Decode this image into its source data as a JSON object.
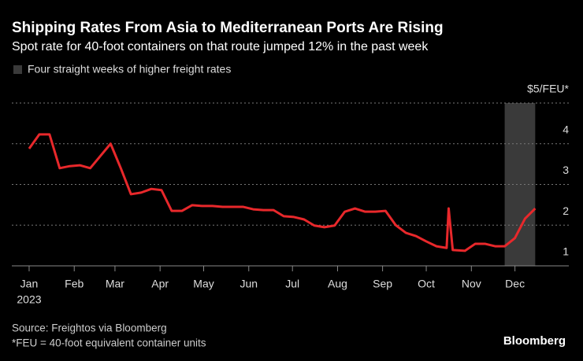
{
  "chart_data": {
    "type": "line",
    "title": "Shipping Rates From Asia to Mediterranean Ports Are Rising",
    "subtitle": "Spot rate for 40-foot containers on that route jumped 12% in the past week",
    "highlight": {
      "label": "Four straight weeks of higher freight rates",
      "range": [
        46.7,
        49.7
      ],
      "color": "#3a3a3a"
    },
    "x": [
      0,
      1,
      2,
      3,
      4,
      5,
      6,
      7,
      8,
      9,
      10,
      11,
      12,
      13,
      14,
      15,
      16,
      17,
      18,
      19,
      20,
      21,
      22,
      23,
      24,
      25,
      26,
      27,
      28,
      29,
      30,
      31,
      32,
      33,
      34,
      35,
      36,
      37,
      38,
      39,
      40,
      41,
      41.2,
      41.6,
      42.8,
      43.8,
      44.8,
      45.8,
      46.7,
      47.7,
      48.7,
      49.7
    ],
    "series": [
      {
        "name": "Spot rate",
        "color": "#e8282b",
        "values": [
          3.88,
          4.23,
          4.23,
          3.4,
          3.45,
          3.47,
          3.4,
          3.7,
          4.0,
          3.4,
          2.76,
          2.8,
          2.89,
          2.86,
          2.35,
          2.35,
          2.49,
          2.47,
          2.47,
          2.45,
          2.45,
          2.45,
          2.39,
          2.37,
          2.37,
          2.22,
          2.2,
          2.14,
          1.99,
          1.95,
          1.99,
          2.33,
          2.41,
          2.33,
          2.33,
          2.35,
          2.0,
          1.81,
          1.73,
          1.6,
          1.48,
          1.44,
          2.41,
          1.39,
          1.37,
          1.54,
          1.54,
          1.48,
          1.48,
          1.68,
          2.16,
          2.41
        ]
      }
    ],
    "xlim": [
      -1.7,
      53
    ],
    "xticks": [
      {
        "value": 0,
        "label": "Jan"
      },
      {
        "value": 4.43,
        "label": "Feb"
      },
      {
        "value": 8.43,
        "label": "Mar"
      },
      {
        "value": 12.86,
        "label": "Apr"
      },
      {
        "value": 17.14,
        "label": "May"
      },
      {
        "value": 21.57,
        "label": "Jun"
      },
      {
        "value": 25.86,
        "label": "Jul"
      },
      {
        "value": 30.29,
        "label": "Aug"
      },
      {
        "value": 34.71,
        "label": "Sep"
      },
      {
        "value": 39,
        "label": "Oct"
      },
      {
        "value": 43.43,
        "label": "Nov"
      },
      {
        "value": 47.71,
        "label": "Dec"
      }
    ],
    "year_label": "2023",
    "ylim": [
      1,
      5
    ],
    "yticks": [
      1,
      2,
      3,
      4,
      {
        "value": 5,
        "label": "$5/FEU*"
      }
    ],
    "grid": true,
    "source": "Source: Freightos via Bloomberg",
    "note": "*FEU = 40-foot equivalent container units",
    "brand": "Bloomberg"
  }
}
